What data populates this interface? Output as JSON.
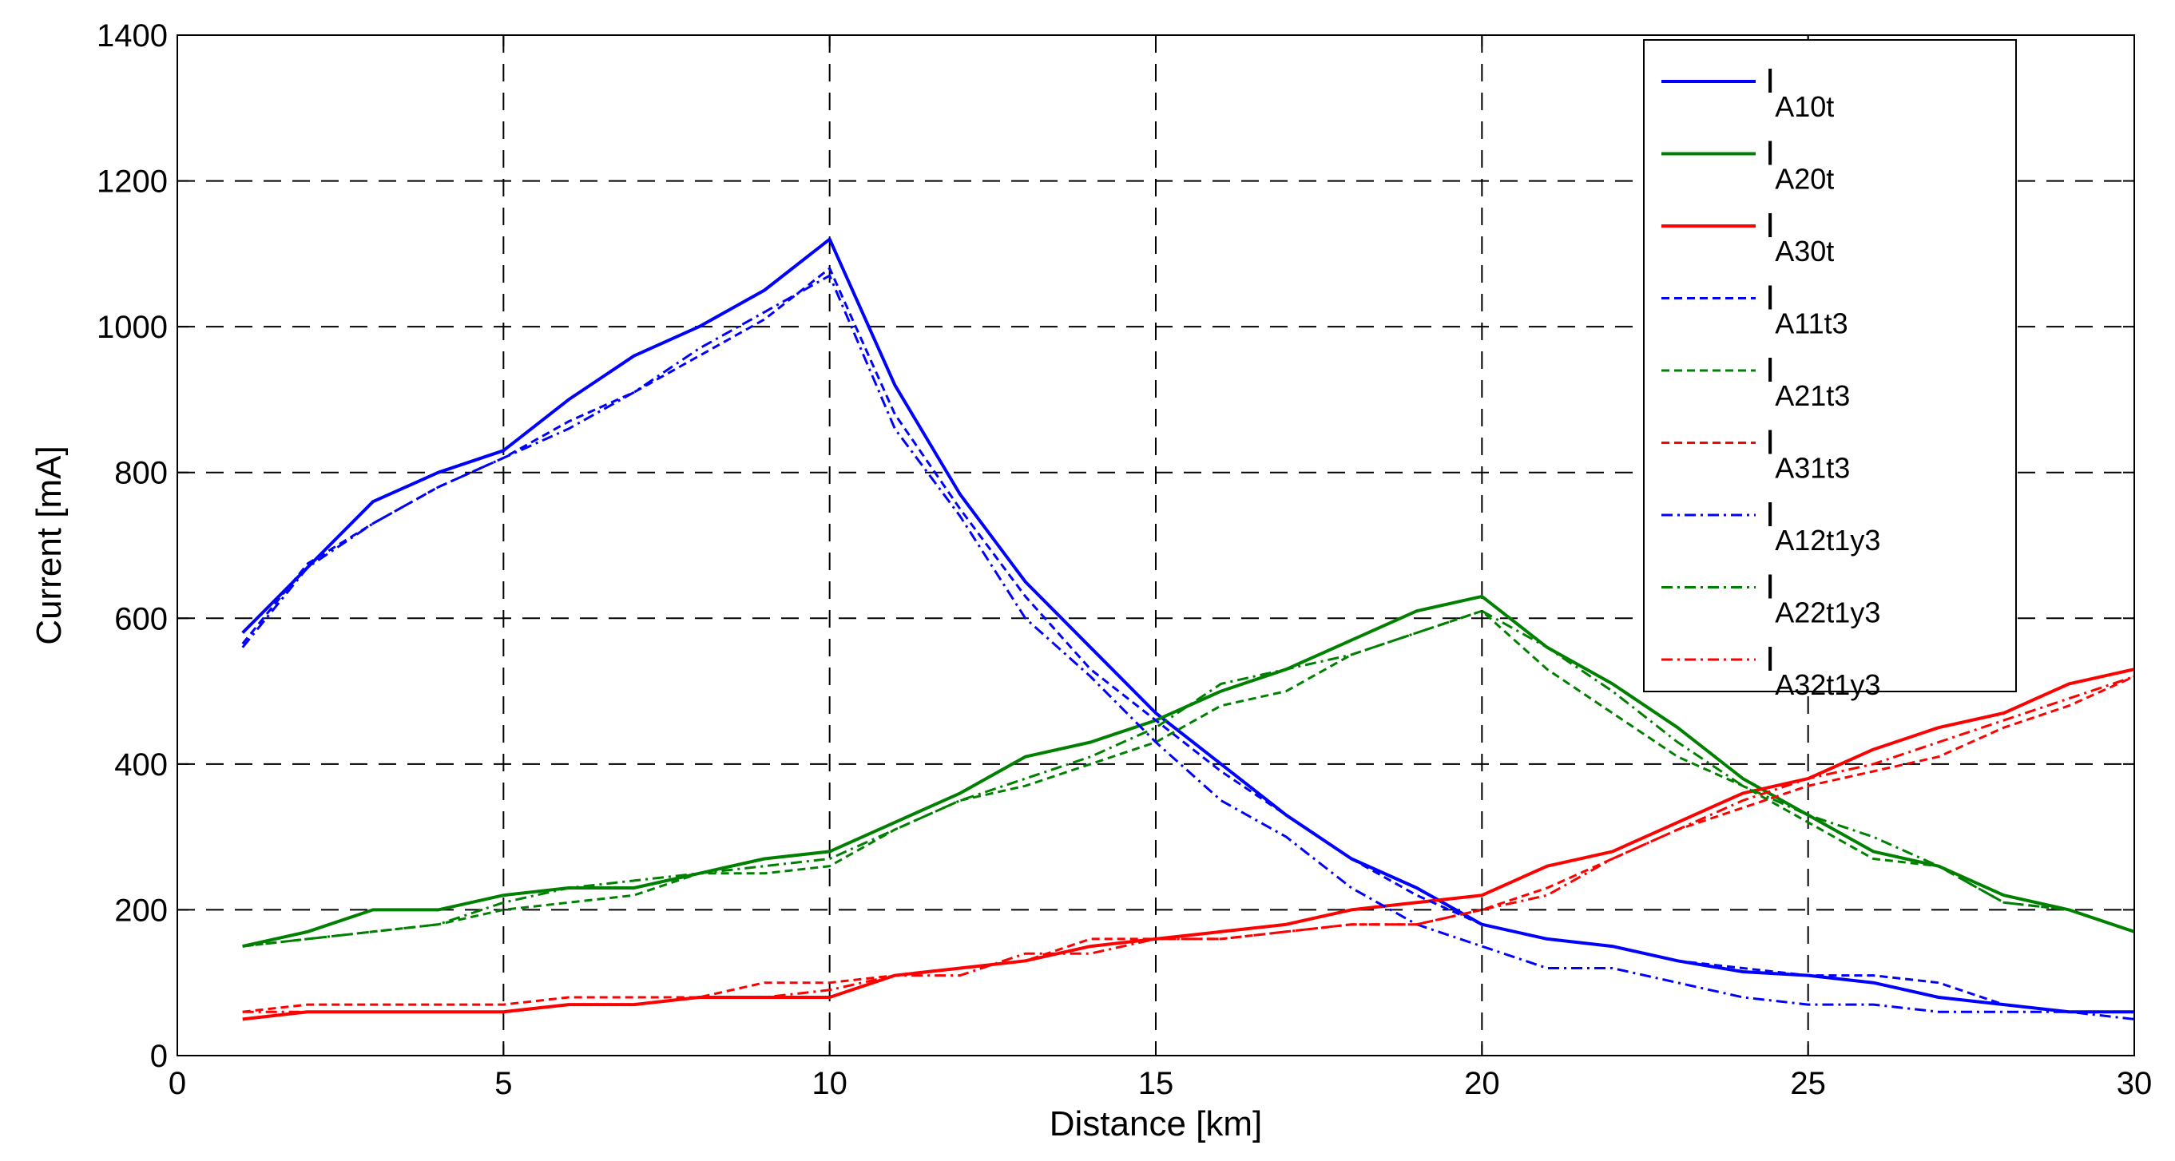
{
  "chart_data": {
    "type": "line",
    "xlabel": "Distance [km]",
    "ylabel": "Current [mA]",
    "xlim": [
      0,
      30
    ],
    "ylim": [
      0,
      1400
    ],
    "xticks": [
      0,
      5,
      10,
      15,
      20,
      25,
      30
    ],
    "yticks": [
      0,
      200,
      400,
      600,
      800,
      1000,
      1200,
      1400
    ],
    "grid": true,
    "legend_position": "top-right",
    "x": [
      1,
      2,
      3,
      4,
      5,
      6,
      7,
      8,
      9,
      10,
      11,
      12,
      13,
      14,
      15,
      16,
      17,
      18,
      19,
      20,
      21,
      22,
      23,
      24,
      25,
      26,
      27,
      28,
      29,
      30
    ],
    "series": [
      {
        "name": "I",
        "sub": "A10t",
        "color": "#0000ff",
        "style": "solid",
        "values": [
          580,
          670,
          760,
          800,
          830,
          900,
          960,
          1000,
          1050,
          1120,
          920,
          770,
          650,
          560,
          470,
          400,
          330,
          270,
          230,
          180,
          160,
          150,
          130,
          115,
          110,
          100,
          80,
          70,
          60,
          60
        ]
      },
      {
        "name": "I",
        "sub": "A20t",
        "color": "#008000",
        "style": "solid",
        "values": [
          150,
          170,
          200,
          200,
          220,
          230,
          230,
          250,
          270,
          280,
          320,
          360,
          410,
          430,
          460,
          500,
          530,
          570,
          610,
          630,
          560,
          510,
          450,
          380,
          330,
          280,
          260,
          220,
          200,
          170
        ]
      },
      {
        "name": "I",
        "sub": "A30t",
        "color": "#ff0000",
        "style": "solid",
        "values": [
          50,
          60,
          60,
          60,
          60,
          70,
          70,
          80,
          80,
          80,
          110,
          120,
          130,
          150,
          160,
          170,
          180,
          200,
          210,
          220,
          260,
          280,
          320,
          360,
          380,
          420,
          450,
          470,
          510,
          530
        ]
      },
      {
        "name": "I",
        "sub": "A11t3",
        "color": "#0000ff",
        "style": "dashed",
        "values": [
          565,
          675,
          730,
          780,
          820,
          870,
          910,
          960,
          1010,
          1080,
          880,
          750,
          630,
          530,
          460,
          390,
          330,
          270,
          220,
          180,
          160,
          150,
          130,
          120,
          110,
          110,
          100,
          70,
          60,
          60
        ]
      },
      {
        "name": "I",
        "sub": "A21t3",
        "color": "#008000",
        "style": "dashed",
        "values": [
          150,
          160,
          170,
          180,
          200,
          210,
          220,
          250,
          250,
          260,
          310,
          350,
          370,
          400,
          430,
          480,
          500,
          550,
          580,
          610,
          530,
          470,
          410,
          370,
          320,
          270,
          260,
          210,
          200,
          170
        ]
      },
      {
        "name": "I",
        "sub": "A31t3",
        "color": "#ff0000",
        "style": "dashed",
        "values": [
          60,
          70,
          70,
          70,
          70,
          80,
          80,
          80,
          100,
          100,
          110,
          120,
          130,
          160,
          160,
          160,
          170,
          180,
          180,
          200,
          230,
          270,
          310,
          340,
          370,
          390,
          410,
          450,
          480,
          520
        ]
      },
      {
        "name": "I",
        "sub": "A12t1y3",
        "color": "#0000ff",
        "style": "dashdot",
        "values": [
          560,
          670,
          730,
          780,
          820,
          860,
          910,
          970,
          1020,
          1070,
          860,
          740,
          600,
          520,
          430,
          350,
          300,
          230,
          180,
          150,
          120,
          120,
          100,
          80,
          70,
          70,
          60,
          60,
          60,
          50
        ]
      },
      {
        "name": "I",
        "sub": "A22t1y3",
        "color": "#008000",
        "style": "dashdot",
        "values": [
          150,
          160,
          170,
          180,
          210,
          230,
          240,
          250,
          260,
          270,
          310,
          350,
          380,
          410,
          450,
          510,
          530,
          550,
          580,
          610,
          560,
          500,
          430,
          370,
          330,
          300,
          260,
          210,
          200,
          170
        ]
      },
      {
        "name": "I",
        "sub": "A32t1y3",
        "color": "#ff0000",
        "style": "dashdot",
        "values": [
          60,
          60,
          60,
          60,
          60,
          70,
          70,
          80,
          80,
          90,
          110,
          110,
          140,
          140,
          160,
          160,
          170,
          180,
          180,
          200,
          220,
          270,
          310,
          350,
          380,
          400,
          430,
          460,
          490,
          520
        ]
      }
    ]
  }
}
